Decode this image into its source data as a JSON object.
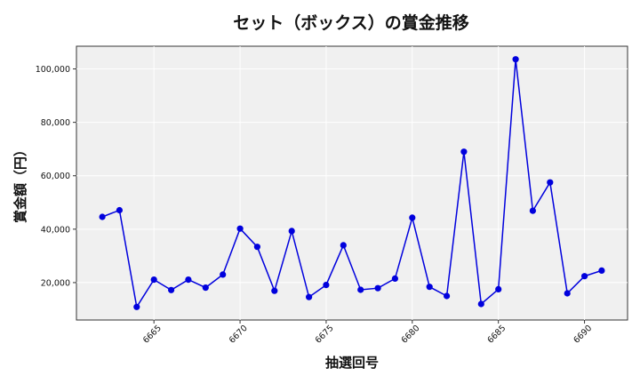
{
  "chart_data": {
    "type": "line",
    "title": "セット（ボックス）の賞金推移",
    "xlabel": "抽選回号",
    "ylabel": "賞金額（円）",
    "xlim": [
      6660.5,
      6692.5
    ],
    "ylim": [
      6000,
      108500
    ],
    "xticks": [
      6665,
      6670,
      6675,
      6680,
      6685,
      6690
    ],
    "yticks": [
      20000,
      40000,
      60000,
      80000,
      100000
    ],
    "ytick_labels": [
      "20,000",
      "40,000",
      "60,000",
      "80,000",
      "100,000"
    ],
    "grid": true,
    "background": "#f0f0f0",
    "series": [
      {
        "color": "#0000dd",
        "x": [
          6662,
          6663,
          6664,
          6665,
          6666,
          6667,
          6668,
          6669,
          6670,
          6671,
          6672,
          6673,
          6674,
          6675,
          6676,
          6677,
          6678,
          6679,
          6680,
          6681,
          6682,
          6683,
          6684,
          6685,
          6686,
          6687,
          6688,
          6689,
          6690,
          6691
        ],
        "y": [
          44600,
          47100,
          10900,
          21100,
          17200,
          21100,
          18100,
          23000,
          40200,
          33400,
          16900,
          39300,
          14600,
          19100,
          34000,
          17300,
          17900,
          21500,
          44300,
          18400,
          15000,
          69000,
          12000,
          17500,
          103600,
          46900,
          57500,
          16000,
          22400,
          24500
        ]
      }
    ]
  }
}
